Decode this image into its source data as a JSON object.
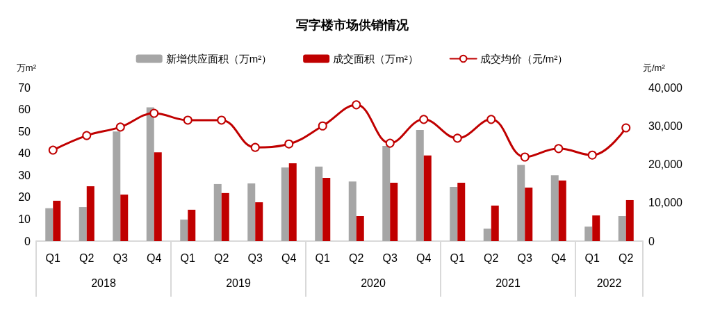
{
  "chart_data": {
    "type": "bar",
    "title": "写字楼市场供销情况",
    "categories": [
      "Q1",
      "Q2",
      "Q3",
      "Q4",
      "Q1",
      "Q2",
      "Q3",
      "Q4",
      "Q1",
      "Q2",
      "Q3",
      "Q4",
      "Q1",
      "Q2",
      "Q3",
      "Q4",
      "Q1",
      "Q2"
    ],
    "annotations": [
      "2018",
      "2019",
      "2020",
      "2021",
      "2022"
    ],
    "ylabel": "万m²",
    "y2label": "元/m²",
    "ylim": [
      0,
      70
    ],
    "yticks": [
      0,
      10,
      20,
      30,
      40,
      50,
      60,
      70
    ],
    "y2lim": [
      0,
      40000
    ],
    "y2ticks": [
      0,
      {
        "value": 10000,
        "label": "10,000"
      },
      {
        "value": 20000,
        "label": "20,000"
      },
      {
        "value": 30000,
        "label": "30,000"
      },
      {
        "value": 40000,
        "label": "40,000"
      }
    ],
    "series": [
      {
        "name": "新增供应面积（万m²）",
        "color": "#a6a6a6",
        "values": [
          15,
          15.5,
          50,
          61,
          9.8,
          26,
          26.3,
          33.6,
          34,
          27.2,
          43.4,
          50.7,
          24.7,
          5.7,
          34.8,
          30,
          6.6,
          11.4
        ]
      },
      {
        "name": "成交面积（万m²）",
        "color": "#c00000",
        "values": [
          18.4,
          25,
          21.2,
          40.5,
          14.3,
          21.9,
          17.7,
          35.5,
          28.8,
          11.4,
          26.6,
          39,
          26.6,
          16.2,
          24.4,
          27.6,
          11.7,
          18.7
        ]
      },
      {
        "name": "成交均价（元/m²）",
        "type": "line",
        "axis": "y2",
        "color": "#c00000",
        "values": [
          23700,
          27500,
          29700,
          33300,
          31500,
          31500,
          24400,
          25300,
          30000,
          35500,
          25500,
          31700,
          26800,
          31700,
          21900,
          24100,
          22400,
          29500
        ]
      }
    ],
    "marker": "circle",
    "grid": false,
    "legend": "top"
  }
}
